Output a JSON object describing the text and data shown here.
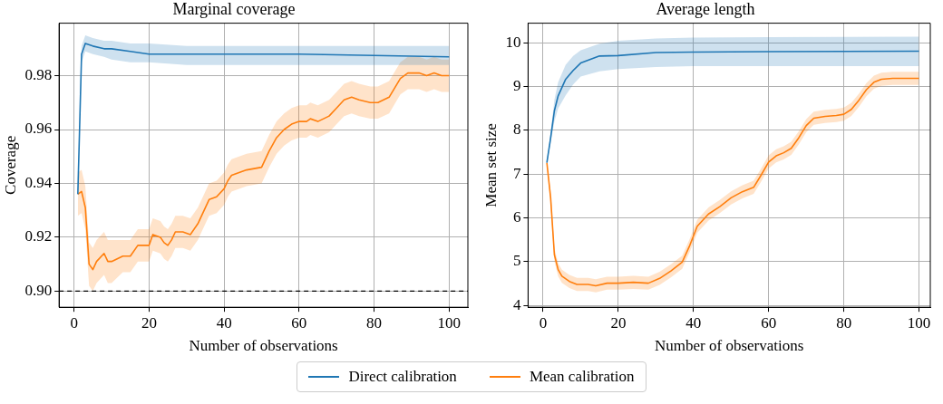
{
  "chart_data": [
    {
      "type": "line",
      "title": "Marginal coverage",
      "xlabel": "Number of observations",
      "ylabel": "Coverage",
      "xlim": [
        -4,
        105
      ],
      "ylim": [
        0.894,
        0.9995
      ],
      "xticks": [
        0,
        20,
        40,
        60,
        80,
        100
      ],
      "yticks": [
        {
          "value": 0.9,
          "label": "0.90"
        },
        {
          "value": 0.92,
          "label": "0.92"
        },
        {
          "value": 0.94,
          "label": "0.94"
        },
        {
          "value": 0.96,
          "label": "0.96"
        },
        {
          "value": 0.98,
          "label": "0.98"
        }
      ],
      "grid": true,
      "legend": "bottom",
      "marker": "none",
      "ref_lines": [
        {
          "axis": "y",
          "value": 0.9,
          "color": "#000000",
          "line_style": "dashed"
        }
      ],
      "series": [
        {
          "name": "Direct calibration",
          "color": "#1f77b4",
          "x": [
            1,
            2,
            3,
            5,
            8,
            10,
            15,
            20,
            30,
            40,
            60,
            100
          ],
          "values": [
            0.936,
            0.988,
            0.992,
            0.991,
            0.99,
            0.99,
            0.989,
            0.988,
            0.988,
            0.988,
            0.988,
            0.987
          ],
          "lower": [
            0.936,
            0.985,
            0.989,
            0.988,
            0.987,
            0.986,
            0.985,
            0.985,
            0.984,
            0.984,
            0.984,
            0.984
          ],
          "upper": [
            0.936,
            0.991,
            0.995,
            0.994,
            0.993,
            0.993,
            0.992,
            0.992,
            0.991,
            0.991,
            0.991,
            0.991
          ]
        },
        {
          "name": "Mean calibration",
          "color": "#ff7f0e",
          "x": [
            1,
            2,
            3,
            4,
            5,
            6,
            8,
            9,
            10,
            13,
            15,
            17,
            20,
            21,
            23,
            24,
            25,
            26,
            27,
            29,
            31,
            33,
            36,
            38,
            40,
            41,
            42,
            44,
            46,
            50,
            52,
            54,
            56,
            58,
            60,
            62,
            63,
            65,
            68,
            70,
            72,
            74,
            76,
            79,
            81,
            84,
            87,
            89,
            92,
            94,
            96,
            98,
            100
          ],
          "values": [
            0.936,
            0.937,
            0.931,
            0.91,
            0.908,
            0.911,
            0.914,
            0.911,
            0.911,
            0.913,
            0.913,
            0.917,
            0.917,
            0.921,
            0.92,
            0.918,
            0.917,
            0.919,
            0.922,
            0.922,
            0.921,
            0.925,
            0.934,
            0.935,
            0.938,
            0.941,
            0.943,
            0.944,
            0.945,
            0.946,
            0.952,
            0.957,
            0.96,
            0.962,
            0.963,
            0.963,
            0.964,
            0.963,
            0.965,
            0.968,
            0.971,
            0.972,
            0.971,
            0.97,
            0.97,
            0.972,
            0.979,
            0.981,
            0.981,
            0.98,
            0.981,
            0.98,
            0.98
          ],
          "lower": [
            0.928,
            0.929,
            0.923,
            0.902,
            0.9,
            0.903,
            0.906,
            0.903,
            0.903,
            0.907,
            0.907,
            0.911,
            0.911,
            0.915,
            0.914,
            0.912,
            0.911,
            0.913,
            0.916,
            0.916,
            0.915,
            0.919,
            0.928,
            0.929,
            0.932,
            0.935,
            0.937,
            0.938,
            0.939,
            0.94,
            0.946,
            0.951,
            0.954,
            0.956,
            0.957,
            0.957,
            0.958,
            0.957,
            0.959,
            0.962,
            0.965,
            0.966,
            0.965,
            0.964,
            0.964,
            0.966,
            0.973,
            0.975,
            0.975,
            0.974,
            0.975,
            0.974,
            0.974
          ],
          "upper": [
            0.944,
            0.945,
            0.939,
            0.918,
            0.916,
            0.919,
            0.922,
            0.919,
            0.919,
            0.919,
            0.919,
            0.923,
            0.923,
            0.927,
            0.926,
            0.924,
            0.923,
            0.925,
            0.928,
            0.928,
            0.927,
            0.931,
            0.94,
            0.941,
            0.944,
            0.947,
            0.949,
            0.95,
            0.951,
            0.952,
            0.958,
            0.963,
            0.966,
            0.968,
            0.969,
            0.969,
            0.97,
            0.969,
            0.971,
            0.974,
            0.977,
            0.978,
            0.977,
            0.976,
            0.976,
            0.978,
            0.985,
            0.987,
            0.987,
            0.986,
            0.987,
            0.986,
            0.986
          ]
        }
      ]
    },
    {
      "type": "line",
      "title": "Average length",
      "xlabel": "Number of observations",
      "ylabel": "Mean set size",
      "xlim": [
        -4,
        103
      ],
      "ylim": [
        3.96,
        10.45
      ],
      "xticks": [
        0,
        20,
        40,
        60,
        80,
        100
      ],
      "yticks": [
        4,
        5,
        6,
        7,
        8,
        9,
        10
      ],
      "grid": true,
      "marker": "none",
      "series": [
        {
          "color": "#1f77b4",
          "x": [
            1,
            2,
            3,
            4,
            6,
            8,
            10,
            15,
            20,
            30,
            40,
            60,
            100
          ],
          "values": [
            7.26,
            7.83,
            8.45,
            8.79,
            9.17,
            9.37,
            9.54,
            9.7,
            9.71,
            9.78,
            9.79,
            9.8,
            9.81
          ],
          "lower": [
            7.26,
            7.7,
            8.2,
            8.5,
            8.8,
            9.05,
            9.23,
            9.35,
            9.4,
            9.45,
            9.47,
            9.47,
            9.47
          ],
          "upper": [
            7.26,
            7.95,
            8.7,
            9.1,
            9.5,
            9.7,
            9.83,
            9.98,
            10.05,
            10.1,
            10.12,
            10.13,
            10.14
          ]
        },
        {
          "color": "#ff7f0e",
          "x": [
            1,
            2,
            3,
            4,
            5,
            7,
            9,
            12,
            14,
            17,
            20,
            24,
            28,
            31,
            34,
            37,
            39,
            41,
            44,
            47,
            50,
            53,
            56,
            58,
            60,
            62,
            64,
            66,
            68,
            70,
            72,
            75,
            78,
            80,
            82,
            84,
            86,
            88,
            90,
            93,
            100
          ],
          "values": [
            7.26,
            6.46,
            5.16,
            4.82,
            4.67,
            4.55,
            4.48,
            4.48,
            4.45,
            4.51,
            4.51,
            4.53,
            4.51,
            4.62,
            4.79,
            4.99,
            5.37,
            5.81,
            6.09,
            6.26,
            6.46,
            6.6,
            6.7,
            6.98,
            7.28,
            7.42,
            7.49,
            7.59,
            7.83,
            8.11,
            8.28,
            8.32,
            8.34,
            8.37,
            8.48,
            8.69,
            8.93,
            9.1,
            9.17,
            9.19,
            9.19
          ],
          "lower": [
            7.26,
            6.31,
            5.01,
            4.67,
            4.52,
            4.4,
            4.33,
            4.33,
            4.3,
            4.36,
            4.36,
            4.38,
            4.36,
            4.47,
            4.64,
            4.84,
            5.22,
            5.66,
            5.94,
            6.11,
            6.31,
            6.45,
            6.55,
            6.83,
            7.13,
            7.27,
            7.34,
            7.44,
            7.68,
            7.96,
            8.13,
            8.17,
            8.19,
            8.22,
            8.33,
            8.54,
            8.78,
            8.95,
            9.02,
            9.04,
            9.04
          ],
          "upper": [
            7.26,
            6.61,
            5.31,
            4.97,
            4.82,
            4.7,
            4.63,
            4.63,
            4.6,
            4.66,
            4.66,
            4.68,
            4.66,
            4.77,
            4.94,
            5.14,
            5.52,
            5.96,
            6.24,
            6.41,
            6.61,
            6.75,
            6.85,
            7.13,
            7.43,
            7.57,
            7.64,
            7.74,
            7.98,
            8.26,
            8.43,
            8.47,
            8.49,
            8.52,
            8.63,
            8.84,
            9.08,
            9.25,
            9.32,
            9.34,
            9.34
          ]
        }
      ]
    }
  ]
}
